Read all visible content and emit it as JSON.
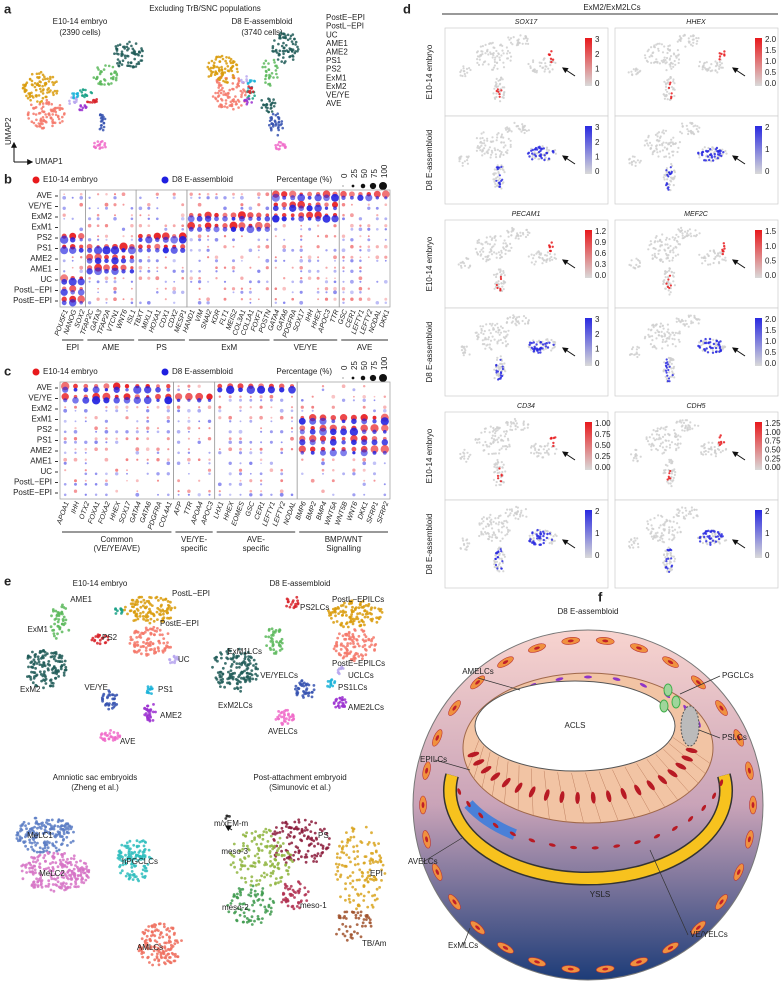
{
  "panel_a": {
    "label": "a",
    "title": "Excluding TrB/SNC populations",
    "embryo_title": [
      "E10-14 embryo",
      "(2390 cells)"
    ],
    "assembloid_title": [
      "D8 E-assembloid",
      "(3740 cells)"
    ],
    "legend": [
      {
        "label": "PostE−EPI",
        "color": "#f4786a"
      },
      {
        "label": "PostL−EPI",
        "color": "#d99b0b"
      },
      {
        "label": "UC",
        "color": "#b7a6ee"
      },
      {
        "label": "AME1",
        "color": "#16a085"
      },
      {
        "label": "AME2",
        "color": "#9b30d0"
      },
      {
        "label": "PS1",
        "color": "#17b1d8"
      },
      {
        "label": "PS2",
        "color": "#d8232a"
      },
      {
        "label": "ExM1",
        "color": "#5cb85c"
      },
      {
        "label": "ExM2",
        "color": "#1e5b57"
      },
      {
        "label": "VE/YE",
        "color": "#3652b0"
      },
      {
        "label": "AVE",
        "color": "#f06bc9"
      }
    ],
    "y_axis": "UMAP2",
    "x_axis": "UMAP1"
  },
  "panel_b": {
    "label": "b",
    "embryo": {
      "label": "E10-14 embryo",
      "color": "#e8191c"
    },
    "assembloid": {
      "label": "D8 E-assembloid",
      "color": "#1f1fe0"
    },
    "size_title": "Percentage (%)",
    "size_ticks": [
      0,
      25,
      50,
      75,
      100
    ],
    "rows": [
      "AVE",
      "VE/YE",
      "ExM2",
      "ExM1",
      "PS2",
      "PS1",
      "AME2",
      "AME1",
      "UC",
      "PostL−EPI",
      "PostE−EPI"
    ],
    "groups": [
      {
        "name": [
          "EPI"
        ],
        "genes": [
          "POU5F1",
          "NANOG",
          "SOX2"
        ]
      },
      {
        "name": [
          "AME"
        ],
        "genes": [
          "TFAP2C",
          "GATA3",
          "TFAP2A",
          "VTCN1",
          "WNT6",
          "ISL1"
        ]
      },
      {
        "name": [
          "PS"
        ],
        "genes": [
          "TBXT",
          "MIXL1",
          "HOXA1",
          "CDX1",
          "CDX2",
          "MESP1"
        ]
      },
      {
        "name": [
          "ExM"
        ],
        "genes": [
          "HAND1",
          "VIM",
          "SNAI2",
          "KDR",
          "FLT1",
          "MEIS2",
          "COL3A1",
          "COL1A1",
          "FOXF1",
          "POSTN"
        ]
      },
      {
        "name": [
          "VE/YE"
        ],
        "genes": [
          "GATA4",
          "GATA6",
          "PDGFRA",
          "SOX17",
          "IHH",
          "HHEX",
          "APOC3",
          "TTR"
        ]
      },
      {
        "name": [
          "AVE"
        ],
        "genes": [
          "GSC",
          "CER1",
          "LEFTY1",
          "LEFTY2",
          "NODAL",
          "DKK1"
        ]
      }
    ]
  },
  "panel_c": {
    "label": "c",
    "embryo": {
      "label": "E10-14 embryo",
      "color": "#e8191c"
    },
    "assembloid": {
      "label": "D8 E-assembloid",
      "color": "#1f1fe0"
    },
    "size_title": "Percentage (%)",
    "size_ticks": [
      0,
      25,
      50,
      75,
      100
    ],
    "rows": [
      "AVE",
      "VE/YE",
      "ExM2",
      "ExM1",
      "PS2",
      "PS1",
      "AME2",
      "AME1",
      "UC",
      "PostL−EPI",
      "PostE−EPI"
    ],
    "groups": [
      {
        "name": [
          "Common",
          "(VE/YE/AVE)"
        ],
        "genes": [
          "APOA1",
          "IHH",
          "OTX2",
          "FOXA1",
          "FOXA2",
          "HHEX",
          "SOX17",
          "GATA4",
          "GATA6",
          "PDGFRA",
          "COL4A1"
        ]
      },
      {
        "name": [
          "VE/YE-",
          "specific"
        ],
        "genes": [
          "AFP",
          "TTR",
          "APOA4",
          "APOC3"
        ]
      },
      {
        "name": [
          "AVE-",
          "specific"
        ],
        "genes": [
          "LHX1",
          "HHEX",
          "EOMES",
          "GSC",
          "CER1",
          "LEFTY1",
          "LEFTY2",
          "NODAL"
        ]
      },
      {
        "name": [
          "BMP/WNT",
          "Signalling"
        ],
        "genes": [
          "BMP6",
          "BMP2",
          "BMP4",
          "WNT5A",
          "WNT5B",
          "WNT6",
          "DKK1",
          "SFRP1",
          "SFRP2"
        ]
      }
    ]
  },
  "panel_d": {
    "label": "d",
    "title": "ExM2/ExM2LCs",
    "row_labels": [
      {
        "text": "E10-14 embryo",
        "color": "#e8191c"
      },
      {
        "text": "D8 E-assembloid",
        "color": "#2a2ae0"
      }
    ],
    "blocks": [
      {
        "genes": [
          "SOX17",
          "HHEX"
        ],
        "colorbar_ticks": [
          [
            [
              "3",
              "2",
              "1",
              "0"
            ],
            [
              "2.0",
              "1.5",
              "1.0",
              "0.5",
              "0.0"
            ]
          ],
          [
            [
              "3",
              "2",
              "1",
              "0"
            ],
            [
              "2",
              "1",
              "0"
            ]
          ]
        ]
      },
      {
        "genes": [
          "PECAM1",
          "MEF2C"
        ],
        "colorbar_ticks": [
          [
            [
              "1.2",
              "0.9",
              "0.6",
              "0.3",
              "0.0"
            ],
            [
              "1.5",
              "1.0",
              "0.5",
              "0.0"
            ]
          ],
          [
            [
              "3",
              "2",
              "1",
              "0"
            ],
            [
              "2.0",
              "1.5",
              "1.0",
              "0.5",
              "0.0"
            ]
          ]
        ]
      },
      {
        "genes": [
          "CD34",
          "CDH5"
        ],
        "colorbar_ticks": [
          [
            [
              "1.00",
              "0.75",
              "0.50",
              "0.25",
              "0.00"
            ],
            [
              "1.25",
              "1.00",
              "0.75",
              "0.50",
              "0.25",
              "0.00"
            ]
          ],
          [
            [
              "2",
              "1",
              "0"
            ],
            [
              "2",
              "1",
              "0"
            ]
          ]
        ]
      }
    ]
  },
  "panel_e": {
    "label": "e",
    "plots": [
      {
        "title": [
          "E10-14 embryo"
        ],
        "text_colored": true,
        "labels": [
          {
            "text": "AME1",
            "color": "#16a085"
          },
          {
            "text": "ExM1",
            "color": "#5cb85c"
          },
          {
            "text": "PS2",
            "color": "#d8232a"
          },
          {
            "text": "PostL−EPI",
            "color": "#d99b0b"
          },
          {
            "text": "PostE−EPI",
            "color": "#f4786a"
          },
          {
            "text": "UC",
            "color": "#b7a6ee"
          },
          {
            "text": "VE/YE",
            "color": "#3652b0"
          },
          {
            "text": "PS1",
            "color": "#17b1d8"
          },
          {
            "text": "AME2",
            "color": "#9b30d0"
          },
          {
            "text": "ExM2",
            "color": "#1e5b57"
          },
          {
            "text": "AVE",
            "color": "#f06bc9"
          }
        ]
      },
      {
        "title": [
          "D8 E-assembloid"
        ],
        "text_colored": true,
        "labels": [
          {
            "text": "PS2LCs",
            "color": "#d8232a"
          },
          {
            "text": "PostL−EPILCs",
            "color": "#d99b0b"
          },
          {
            "text": "ExM1LCs",
            "color": "#5cb85c"
          },
          {
            "text": "VE/YELCs",
            "color": "#3652b0"
          },
          {
            "text": "PS1LCs",
            "color": "#17b1d8"
          },
          {
            "text": "UCLCs",
            "color": "#b7a6ee"
          },
          {
            "text": "PostE−EPILCs",
            "color": "#f4786a"
          },
          {
            "text": "AME2LCs",
            "color": "#9b30d0"
          },
          {
            "text": "ExM2LCs",
            "color": "#1e5b57"
          },
          {
            "text": "AVELCs",
            "color": "#f06bc9"
          }
        ]
      },
      {
        "title": [
          "Amniotic sac embryoids",
          "(Zheng et al.)"
        ],
        "text_colored": false,
        "labels": [
          {
            "text": "MeLC1",
            "color": "#5b7cc4"
          },
          {
            "text": "MeLC2",
            "color": "#d673c6"
          },
          {
            "text": "hPGCLCs",
            "color": "#2ebdbd"
          },
          {
            "text": "AMLCs",
            "color": "#ef6e5e"
          }
        ]
      },
      {
        "title": [
          "Post-attachment embryoid",
          "(Simunovic et al.)"
        ],
        "text_colored": true,
        "labels": [
          {
            "text": "m/xEM-m",
            "color": "#222222"
          },
          {
            "text": "PS",
            "color": "#8b1a3a"
          },
          {
            "text": "meso-3",
            "color": "#8fb53f"
          },
          {
            "text": "meso-2",
            "color": "#3e9a4e"
          },
          {
            "text": "meso-1",
            "color": "#b03050"
          },
          {
            "text": "EPI",
            "color": "#d9a520"
          },
          {
            "text": "TB/Am",
            "color": "#a0522d"
          }
        ]
      }
    ]
  },
  "panel_f": {
    "label": "f",
    "title": "D8 E-assembloid",
    "labels": [
      {
        "text": "AMELCs",
        "color": "#8e35c8"
      },
      {
        "text": "PGCLCs",
        "color": "#3fae49"
      },
      {
        "text": "ACLS",
        "color": "#111111"
      },
      {
        "text": "EPILCs",
        "color": "#d8232a"
      },
      {
        "text": "PSLCs",
        "color": "#666666"
      },
      {
        "text": "AVELCs",
        "color": "#3b7dd8"
      },
      {
        "text": "YSLS",
        "color": "#111111"
      },
      {
        "text": "ExMLCs",
        "color": "#d8232a"
      },
      {
        "text": "VE/YELCs",
        "color": "#e0a000"
      }
    ]
  }
}
